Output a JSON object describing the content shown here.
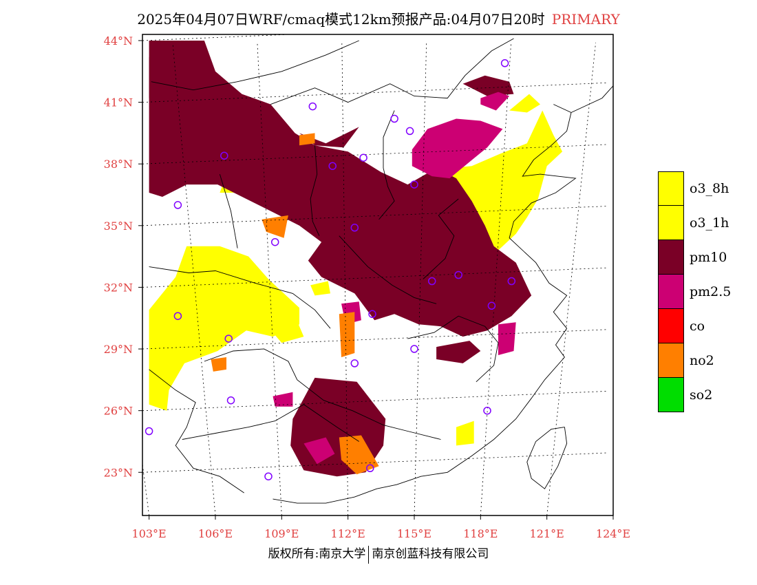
{
  "title": {
    "main": "2025年04月07日WRF/cmaq模式12km预报产品:04月07日20时",
    "tag": "PRIMARY"
  },
  "map": {
    "lon_range": [
      102.7,
      124
    ],
    "lat_range": [
      20.9,
      44.3
    ],
    "lon_ticks": [
      "103°E",
      "106°E",
      "109°E",
      "112°E",
      "115°E",
      "118°E",
      "121°E",
      "124°E"
    ],
    "lon_tick_values": [
      103,
      106,
      109,
      112,
      115,
      118,
      121,
      124
    ],
    "lat_ticks": [
      "44°N",
      "41°N",
      "38°N",
      "35°N",
      "32°N",
      "29°N",
      "26°N",
      "23°N"
    ],
    "lat_tick_values": [
      44,
      41,
      38,
      35,
      32,
      29,
      26,
      23
    ],
    "colors": {
      "o3_8h": "#ffff00",
      "o3_1h": "#ffff00",
      "pm10": "#7a0026",
      "pm25": "#cc0073",
      "no2": "#ff7f00",
      "station": "#8000ff"
    },
    "stations": [
      [
        119.1,
        42.9
      ],
      [
        110.4,
        40.8
      ],
      [
        114.1,
        40.2
      ],
      [
        114.8,
        39.6
      ],
      [
        106.4,
        38.4
      ],
      [
        111.3,
        37.9
      ],
      [
        112.7,
        38.3
      ],
      [
        115.0,
        37.0
      ],
      [
        104.3,
        36.0
      ],
      [
        112.3,
        34.9
      ],
      [
        108.7,
        34.2
      ],
      [
        115.8,
        32.3
      ],
      [
        117.0,
        32.6
      ],
      [
        119.4,
        32.3
      ],
      [
        118.5,
        31.1
      ],
      [
        104.3,
        30.6
      ],
      [
        113.1,
        30.7
      ],
      [
        106.6,
        29.5
      ],
      [
        115.0,
        29.0
      ],
      [
        112.3,
        28.3
      ],
      [
        106.7,
        26.5
      ],
      [
        103.0,
        25.0
      ],
      [
        118.3,
        26.0
      ],
      [
        108.4,
        22.8
      ],
      [
        113.0,
        23.2
      ]
    ],
    "regions": {
      "pm10": [
        [
          [
            103.0,
            44.0
          ],
          [
            105.5,
            44.0
          ],
          [
            106.0,
            42.5
          ],
          [
            107.2,
            41.4
          ],
          [
            108.5,
            40.9
          ],
          [
            109.6,
            39.5
          ],
          [
            110.5,
            38.9
          ],
          [
            112.0,
            38.6
          ],
          [
            113.5,
            37.6
          ],
          [
            114.7,
            37.0
          ],
          [
            116.0,
            37.8
          ],
          [
            116.9,
            37.3
          ],
          [
            117.6,
            36.2
          ],
          [
            118.2,
            35.0
          ],
          [
            118.6,
            34.0
          ],
          [
            119.6,
            33.2
          ],
          [
            120.3,
            31.6
          ],
          [
            119.4,
            30.6
          ],
          [
            118.3,
            29.9
          ],
          [
            117.2,
            29.6
          ],
          [
            116.2,
            30.1
          ],
          [
            115.2,
            30.2
          ],
          [
            114.1,
            30.7
          ],
          [
            113.2,
            30.4
          ],
          [
            112.3,
            31.7
          ],
          [
            110.8,
            32.5
          ],
          [
            110.2,
            33.3
          ],
          [
            110.8,
            34.2
          ],
          [
            109.8,
            35.0
          ],
          [
            108.7,
            35.6
          ],
          [
            107.4,
            36.3
          ],
          [
            106.1,
            37.0
          ],
          [
            104.7,
            37.0
          ],
          [
            103.6,
            36.4
          ],
          [
            103.0,
            36.6
          ]
        ],
        [
          [
            109.8,
            39.5
          ],
          [
            111.0,
            39.0
          ],
          [
            112.5,
            39.8
          ],
          [
            111.8,
            38.8
          ],
          [
            110.5,
            38.9
          ]
        ],
        [
          [
            110.5,
            27.6
          ],
          [
            112.4,
            27.4
          ],
          [
            113.7,
            25.6
          ],
          [
            113.6,
            24.3
          ],
          [
            112.8,
            23.0
          ],
          [
            111.5,
            22.8
          ],
          [
            110.0,
            23.1
          ],
          [
            109.4,
            24.3
          ],
          [
            109.5,
            25.6
          ]
        ],
        [
          [
            116.0,
            29.1
          ],
          [
            117.5,
            29.4
          ],
          [
            118.0,
            28.9
          ],
          [
            117.2,
            28.3
          ],
          [
            116.0,
            28.5
          ]
        ],
        [
          [
            117.2,
            41.9
          ],
          [
            118.2,
            42.3
          ],
          [
            119.3,
            42.0
          ],
          [
            119.5,
            41.4
          ],
          [
            118.3,
            41.3
          ]
        ],
        [
          [
            103.0,
            43.2
          ],
          [
            104.0,
            43.2
          ],
          [
            103.8,
            41.4
          ],
          [
            103.0,
            41.2
          ]
        ]
      ],
      "pm25": [
        [
          [
            114.9,
            38.7
          ],
          [
            115.6,
            39.7
          ],
          [
            116.9,
            40.2
          ],
          [
            118.0,
            40.1
          ],
          [
            119.0,
            39.7
          ],
          [
            118.3,
            38.8
          ],
          [
            117.5,
            38.1
          ],
          [
            116.6,
            37.3
          ],
          [
            115.8,
            37.4
          ],
          [
            114.9,
            37.9
          ]
        ],
        [
          [
            118.0,
            41.2
          ],
          [
            118.8,
            41.5
          ],
          [
            119.3,
            41.3
          ],
          [
            118.7,
            40.6
          ],
          [
            118.0,
            40.9
          ]
        ],
        [
          [
            111.7,
            31.2
          ],
          [
            112.5,
            31.3
          ],
          [
            112.6,
            30.4
          ],
          [
            111.9,
            30.2
          ]
        ],
        [
          [
            118.8,
            30.2
          ],
          [
            119.6,
            30.3
          ],
          [
            119.5,
            28.9
          ],
          [
            118.8,
            28.7
          ]
        ],
        [
          [
            110.0,
            24.4
          ],
          [
            111.0,
            24.7
          ],
          [
            111.4,
            23.9
          ],
          [
            110.6,
            23.4
          ]
        ],
        [
          [
            108.6,
            26.7
          ],
          [
            109.5,
            26.9
          ],
          [
            109.5,
            26.2
          ],
          [
            108.7,
            26.2
          ]
        ]
      ],
      "no2": [
        [
          [
            111.6,
            30.7
          ],
          [
            112.3,
            30.8
          ],
          [
            112.3,
            28.8
          ],
          [
            111.7,
            28.6
          ]
        ],
        [
          [
            111.6,
            24.7
          ],
          [
            112.6,
            24.8
          ],
          [
            113.4,
            23.3
          ],
          [
            112.4,
            22.9
          ],
          [
            111.7,
            23.6
          ]
        ],
        [
          [
            108.1,
            35.3
          ],
          [
            109.3,
            35.5
          ],
          [
            109.1,
            34.4
          ],
          [
            108.3,
            34.7
          ]
        ],
        [
          [
            109.8,
            39.4
          ],
          [
            110.5,
            39.5
          ],
          [
            110.5,
            39.0
          ],
          [
            109.8,
            38.9
          ]
        ],
        [
          [
            105.8,
            28.5
          ],
          [
            106.5,
            28.6
          ],
          [
            106.5,
            28.0
          ],
          [
            105.9,
            27.9
          ]
        ]
      ],
      "o3": [
        [
          [
            116.6,
            37.8
          ],
          [
            117.6,
            37.9
          ],
          [
            118.9,
            38.5
          ],
          [
            120.1,
            39.0
          ],
          [
            120.8,
            40.6
          ],
          [
            121.3,
            39.4
          ],
          [
            121.7,
            38.6
          ],
          [
            121.0,
            37.9
          ],
          [
            120.6,
            36.3
          ],
          [
            120.1,
            35.4
          ],
          [
            119.6,
            34.6
          ],
          [
            118.7,
            33.7
          ],
          [
            117.8,
            34.6
          ],
          [
            117.1,
            35.9
          ]
        ],
        [
          [
            103.0,
            30.9
          ],
          [
            104.2,
            32.5
          ],
          [
            104.7,
            34.0
          ],
          [
            106.2,
            34.0
          ],
          [
            107.5,
            33.5
          ],
          [
            108.4,
            32.4
          ],
          [
            109.8,
            31.0
          ],
          [
            109.8,
            30.2
          ],
          [
            108.6,
            29.6
          ],
          [
            107.4,
            29.9
          ],
          [
            106.1,
            28.9
          ],
          [
            104.6,
            28.3
          ],
          [
            103.9,
            27.0
          ],
          [
            103.8,
            26.0
          ],
          [
            103.0,
            26.3
          ]
        ],
        [
          [
            110.3,
            32.1
          ],
          [
            111.1,
            32.3
          ],
          [
            111.2,
            31.7
          ],
          [
            110.5,
            31.6
          ]
        ],
        [
          [
            108.2,
            30.3
          ],
          [
            109.6,
            30.6
          ],
          [
            110.0,
            29.6
          ],
          [
            109.0,
            29.3
          ]
        ],
        [
          [
            106.4,
            37.2
          ],
          [
            107.6,
            37.2
          ],
          [
            107.4,
            36.6
          ],
          [
            106.2,
            36.6
          ]
        ],
        [
          [
            116.9,
            25.2
          ],
          [
            117.7,
            25.5
          ],
          [
            117.7,
            24.4
          ],
          [
            116.9,
            24.3
          ]
        ],
        [
          [
            119.3,
            40.6
          ],
          [
            120.2,
            41.4
          ],
          [
            120.7,
            40.9
          ],
          [
            120.1,
            40.5
          ]
        ]
      ]
    }
  },
  "legend": [
    {
      "label": "o3_8h",
      "color": "#ffff00"
    },
    {
      "label": "o3_1h",
      "color": "#ffff00"
    },
    {
      "label": "pm10",
      "color": "#7a0026"
    },
    {
      "label": "pm2.5",
      "color": "#cc0073"
    },
    {
      "label": "co",
      "color": "#ff0000"
    },
    {
      "label": "no2",
      "color": "#ff7f00"
    },
    {
      "label": "so2",
      "color": "#00dd00"
    }
  ],
  "footer": {
    "left": "版权所有:南京大学",
    "right": "南京创蓝科技有限公司"
  }
}
